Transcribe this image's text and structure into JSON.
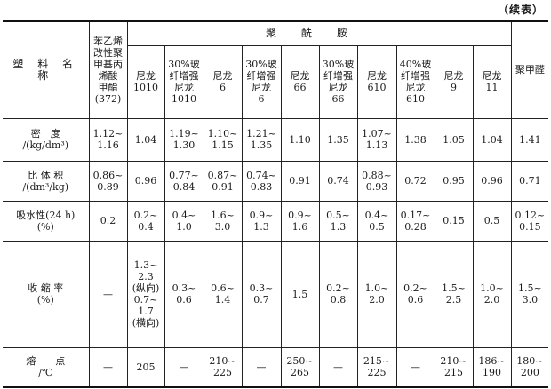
{
  "continued_label": "（续表）",
  "table": {
    "row_header": "塑 料 名 称",
    "pmma_header": "苯乙烯\n改性聚\n甲基丙\n烯酸\n甲酯\n(372)",
    "group_header": "聚酰胺",
    "pom_header": "聚甲醛",
    "sub_headers": [
      "尼龙\n1010",
      "30%玻\n纤增强\n尼龙\n1010",
      "尼龙\n6",
      "30%玻\n纤增强\n尼龙\n6",
      "尼龙\n66",
      "30%玻\n纤增强\n尼龙\n66",
      "尼龙\n610",
      "40%玻\n纤增强\n尼龙\n610",
      "尼龙\n9",
      "尼龙\n11"
    ],
    "rows": [
      {
        "label": "密　度\n/(kg/dm³)",
        "values": [
          "1.12~\n1.16",
          "1.04",
          "1.19~\n1.30",
          "1.10~\n1.15",
          "1.21~\n1.35",
          "1.10",
          "1.35",
          "1.07~\n1.13",
          "1.38",
          "1.05",
          "1.04",
          "1.41"
        ]
      },
      {
        "label": "比 体 积\n/(dm³/kg)",
        "values": [
          "0.86~\n0.89",
          "0.96",
          "0.77~\n0.84",
          "0.87~\n0.91",
          "0.74~\n0.83",
          "0.91",
          "0.74",
          "0.88~\n0.93",
          "0.72",
          "0.95",
          "0.96",
          "0.71"
        ]
      },
      {
        "label": "吸水性(24 h)\n(%)",
        "values": [
          "0.2",
          "0.2~\n0.4",
          "0.4~\n1.0",
          "1.6~\n3.0",
          "0.9~\n1.3",
          "0.9~\n1.6",
          "0.5~\n1.3",
          "0.4~\n0.5",
          "0.17~\n0.28",
          "0.15",
          "0.5",
          "0.12~\n0.15"
        ]
      },
      {
        "label": "收 缩 率\n(%)",
        "values": [
          "—",
          "1.3~\n2.3\n(纵向)\n0.7~\n1.7\n(横向)",
          "0.3~\n0.6",
          "0.6~\n1.4",
          "0.3~\n0.7",
          "1.5",
          "0.2~\n0.8",
          "1.0~\n2.0",
          "0.2~\n0.6",
          "1.5~\n2.5",
          "1.0~\n2.0",
          "1.5~\n3.0"
        ]
      },
      {
        "label": "熔　　点\n/℃",
        "values": [
          "—",
          "205",
          "—",
          "210~\n225",
          "—",
          "250~\n265",
          "—",
          "215~\n225",
          "—",
          "210~\n215",
          "186~\n190",
          "180~\n200"
        ]
      }
    ]
  }
}
